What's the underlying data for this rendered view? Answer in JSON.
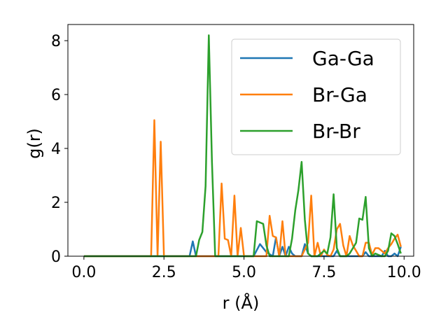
{
  "chart_data": {
    "type": "line",
    "title": "",
    "xlabel": "r (Å)",
    "ylabel": "g(r)",
    "xlim": [
      -0.5,
      10.3
    ],
    "ylim": [
      0,
      8.6
    ],
    "xticks": [
      0.0,
      2.5,
      5.0,
      7.5,
      10.0
    ],
    "xtick_labels": [
      "0.0",
      "2.5",
      "5.0",
      "7.5",
      "10.0"
    ],
    "yticks": [
      0,
      2,
      4,
      6,
      8
    ],
    "ytick_labels": [
      "0",
      "2",
      "4",
      "6",
      "8"
    ],
    "grid": false,
    "legend_position": "top-right",
    "series": [
      {
        "name": "Ga-Ga",
        "color": "#1f77b4",
        "x": [
          0.0,
          3.3,
          3.4,
          3.5,
          5.3,
          5.5,
          5.7,
          5.9,
          6.0,
          6.1,
          6.2,
          6.3,
          6.4,
          6.5,
          6.6,
          6.8,
          6.9,
          7.0,
          7.1,
          7.8,
          7.9,
          8.0,
          8.1,
          8.7,
          8.8,
          8.9,
          9.0,
          9.3,
          9.4,
          9.5,
          9.6,
          9.7,
          9.8,
          9.9
        ],
        "y": [
          0,
          0,
          0.55,
          0,
          0,
          0.45,
          0.15,
          0,
          0.7,
          0,
          0.35,
          0,
          0.35,
          0.1,
          0,
          0,
          0.45,
          0.1,
          0,
          0,
          0.2,
          0,
          0,
          0,
          0.15,
          0,
          0,
          0,
          0.2,
          0,
          0,
          0.1,
          0,
          0.35
        ]
      },
      {
        "name": "Br-Ga",
        "color": "#ff7f0e",
        "x": [
          0.0,
          2.1,
          2.2,
          2.3,
          2.4,
          2.5,
          4.1,
          4.2,
          4.3,
          4.4,
          4.5,
          4.6,
          4.7,
          4.8,
          4.9,
          5.0,
          5.1,
          5.7,
          5.8,
          5.9,
          6.0,
          6.1,
          6.2,
          6.3,
          6.8,
          7.0,
          7.1,
          7.2,
          7.3,
          7.4,
          7.5,
          7.6,
          7.7,
          7.8,
          7.9,
          8.0,
          8.1,
          8.2,
          8.3,
          8.4,
          8.5,
          8.6,
          8.7,
          8.8,
          8.9,
          9.0,
          9.1,
          9.2,
          9.3,
          9.4,
          9.5,
          9.6,
          9.7,
          9.8,
          9.9
        ],
        "y": [
          0,
          0,
          5.05,
          0,
          4.25,
          0,
          0,
          0,
          2.7,
          0.65,
          0.6,
          0,
          2.25,
          0,
          1.05,
          0,
          0,
          0,
          1.5,
          0.75,
          0.7,
          0,
          1.3,
          0,
          0,
          0.5,
          2.25,
          0,
          0.5,
          0,
          0.25,
          0.05,
          0,
          0.25,
          1.0,
          1.2,
          0.4,
          0,
          0.75,
          0.4,
          0.2,
          0,
          0,
          0.5,
          0.5,
          0.05,
          0.3,
          0.3,
          0.2,
          0.1,
          0.3,
          0.45,
          0.65,
          0.8,
          0.35
        ]
      },
      {
        "name": "Br-Br",
        "color": "#2ca02c",
        "x": [
          0.0,
          3.5,
          3.6,
          3.7,
          3.8,
          3.9,
          4.0,
          4.1,
          5.3,
          5.4,
          5.5,
          5.6,
          5.7,
          5.8,
          6.4,
          6.5,
          6.6,
          6.7,
          6.8,
          6.9,
          7.0,
          7.1,
          7.3,
          7.5,
          7.6,
          7.7,
          7.8,
          7.9,
          8.0,
          8.2,
          8.3,
          8.4,
          8.5,
          8.6,
          8.7,
          8.8,
          8.9,
          9.0,
          9.1,
          9.2,
          9.3,
          9.4,
          9.5,
          9.6,
          9.7,
          9.8,
          9.9
        ],
        "y": [
          0,
          0,
          0.6,
          0.9,
          2.6,
          8.2,
          3.5,
          0,
          0,
          1.3,
          1.25,
          1.2,
          0.4,
          0,
          0,
          0.65,
          1.7,
          2.45,
          3.5,
          1.35,
          0.1,
          0,
          0,
          0.2,
          0.1,
          0.7,
          2.3,
          0.3,
          0,
          0,
          0.1,
          0.3,
          0.5,
          1.4,
          1.35,
          2.2,
          0.3,
          0,
          0.1,
          0.05,
          0,
          0,
          0.2,
          0.85,
          0.75,
          0.45,
          0.1
        ]
      }
    ]
  }
}
